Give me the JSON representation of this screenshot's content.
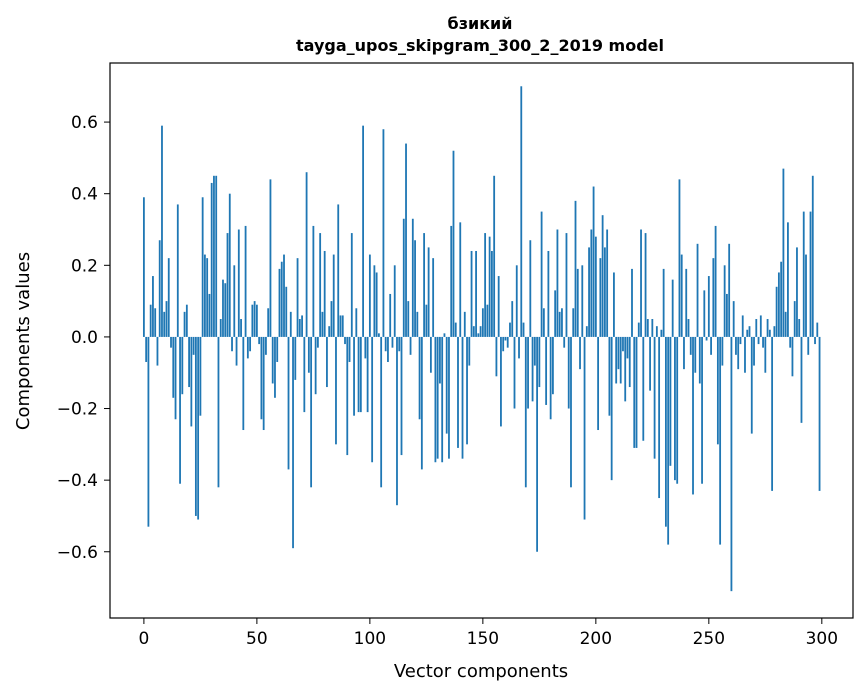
{
  "chart_data": {
    "type": "bar",
    "title": "бзикий",
    "subtitle": "tayga_upos_skipgram_300_2_2019 model",
    "xlabel": "Vector components",
    "ylabel": "Components values",
    "xlim": [
      -15,
      313.8
    ],
    "ylim": [
      -0.785,
      0.765
    ],
    "xticks": [
      0,
      50,
      100,
      150,
      200,
      250,
      300
    ],
    "yticks": [
      -0.6,
      -0.4,
      -0.2,
      0.0,
      0.2,
      0.4,
      0.6
    ],
    "ytick_labels": [
      "−0.6",
      "−0.4",
      "−0.2",
      "0.0",
      "0.2",
      "0.4",
      "0.6"
    ],
    "bar_color": "#1f77b4",
    "grid": false,
    "values": [
      0.39,
      -0.07,
      -0.53,
      0.09,
      0.17,
      0.08,
      -0.08,
      0.27,
      0.59,
      0.07,
      0.1,
      0.22,
      -0.03,
      -0.17,
      -0.23,
      0.37,
      -0.41,
      -0.16,
      0.07,
      0.09,
      -0.14,
      -0.25,
      -0.05,
      -0.5,
      -0.51,
      -0.22,
      0.39,
      0.23,
      0.22,
      0.12,
      0.43,
      0.45,
      0.45,
      -0.42,
      0.05,
      0.16,
      0.15,
      0.29,
      0.4,
      -0.04,
      0.2,
      -0.08,
      0.3,
      0.05,
      -0.26,
      0.31,
      -0.06,
      -0.04,
      0.09,
      0.1,
      0.09,
      -0.02,
      -0.23,
      -0.26,
      -0.05,
      0.08,
      0.44,
      -0.13,
      -0.17,
      -0.07,
      0.19,
      0.21,
      0.23,
      0.14,
      -0.37,
      0.07,
      -0.59,
      -0.12,
      0.22,
      0.05,
      0.06,
      -0.21,
      0.46,
      -0.1,
      -0.42,
      0.31,
      -0.16,
      -0.03,
      0.29,
      0.07,
      0.24,
      -0.14,
      0.03,
      0.1,
      0.23,
      -0.3,
      0.37,
      0.06,
      0.06,
      -0.02,
      -0.33,
      -0.07,
      0.29,
      -0.22,
      0.08,
      -0.21,
      -0.21,
      0.59,
      -0.06,
      -0.21,
      0.23,
      -0.35,
      0.2,
      0.18,
      0.01,
      -0.42,
      0.58,
      -0.04,
      -0.07,
      0.12,
      -0.03,
      0.2,
      -0.47,
      -0.04,
      -0.33,
      0.33,
      0.54,
      0.1,
      -0.05,
      0.33,
      0.27,
      0.07,
      -0.23,
      -0.37,
      0.29,
      0.09,
      0.25,
      -0.1,
      0.22,
      -0.35,
      -0.34,
      -0.13,
      -0.35,
      0.01,
      -0.27,
      -0.34,
      0.31,
      0.52,
      0.04,
      -0.31,
      0.32,
      -0.34,
      0.07,
      -0.3,
      -0.08,
      0.24,
      0.03,
      0.24,
      0.01,
      0.03,
      0.08,
      0.29,
      0.09,
      0.28,
      0.24,
      0.45,
      -0.11,
      0.17,
      -0.25,
      -0.04,
      -0.01,
      -0.03,
      0.04,
      0.1,
      -0.2,
      0.2,
      -0.06,
      0.7,
      0.04,
      -0.42,
      -0.2,
      0.27,
      -0.18,
      -0.08,
      -0.6,
      -0.14,
      0.35,
      0.08,
      -0.19,
      0.24,
      -0.23,
      -0.16,
      0.13,
      0.3,
      0.07,
      0.08,
      -0.03,
      0.29,
      -0.2,
      -0.42,
      0.08,
      0.38,
      0.19,
      -0.09,
      0.2,
      -0.51,
      0.03,
      0.25,
      0.3,
      0.42,
      0.28,
      -0.26,
      0.22,
      0.34,
      0.25,
      0.3,
      -0.22,
      -0.4,
      0.18,
      -0.13,
      -0.09,
      -0.13,
      -0.04,
      -0.18,
      -0.06,
      -0.14,
      0.19,
      -0.31,
      -0.31,
      0.04,
      0.3,
      -0.29,
      0.29,
      0.05,
      -0.15,
      0.05,
      -0.34,
      0.03,
      -0.45,
      0.02,
      0.19,
      -0.53,
      -0.58,
      -0.36,
      0.16,
      -0.4,
      -0.41,
      0.44,
      0.23,
      -0.09,
      0.19,
      0.05,
      -0.05,
      -0.44,
      -0.1,
      0.26,
      -0.13,
      -0.41,
      0.13,
      -0.01,
      0.17,
      -0.05,
      0.22,
      0.31,
      -0.3,
      -0.58,
      -0.08,
      0.2,
      0.12,
      0.26,
      -0.71,
      0.1,
      -0.05,
      -0.09,
      -0.02,
      0.06,
      -0.1,
      0.02,
      0.03,
      -0.27,
      -0.08,
      0.05,
      -0.02,
      0.06,
      -0.03,
      -0.1,
      0.05,
      0.02,
      -0.43,
      0.03,
      0.14,
      0.18,
      0.21,
      0.47,
      0.07,
      0.32,
      -0.03,
      -0.11,
      0.1,
      0.25,
      0.05,
      -0.24,
      0.35,
      0.23,
      -0.05,
      0.35,
      0.45,
      -0.02,
      0.04,
      -0.43
    ]
  }
}
